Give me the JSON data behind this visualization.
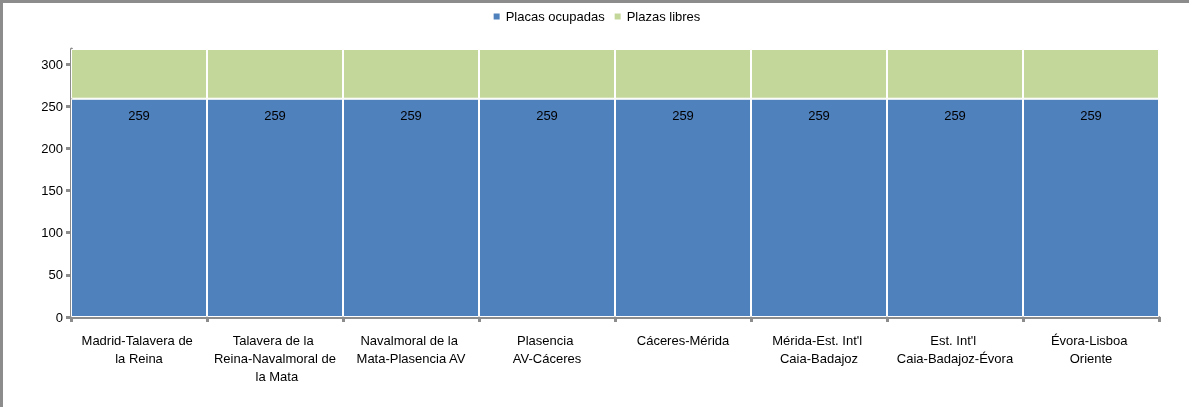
{
  "chart_data": {
    "type": "bar",
    "stacked": true,
    "categories": [
      "Madrid-Talavera de la Reina",
      "Talavera de la Reina-Navalmoral de la Mata",
      "Navalmoral de la Mata-Plasencia AV",
      "Plasencia AV-Cáceres",
      "Cáceres-Mérida",
      "Mérida-Est. Int'l Caia-Badajoz",
      "Est. Int'l Caia-Badajoz-Évora",
      "Évora-Lisboa Oriente"
    ],
    "series": [
      {
        "name": "Placas ocupadas",
        "color": "#4f81bd",
        "values": [
          259,
          259,
          259,
          259,
          259,
          259,
          259,
          259
        ],
        "value_labels": [
          "259",
          "259",
          "259",
          "259",
          "259",
          "259",
          "259",
          "259"
        ]
      },
      {
        "name": "Plazas libres",
        "color": "#c4d79b",
        "values": [
          59,
          59,
          59,
          59,
          59,
          59,
          59,
          59
        ]
      }
    ],
    "ylim": [
      0,
      318
    ],
    "yticks": [
      0,
      50,
      100,
      150,
      200,
      250,
      300
    ],
    "legend": "top"
  }
}
